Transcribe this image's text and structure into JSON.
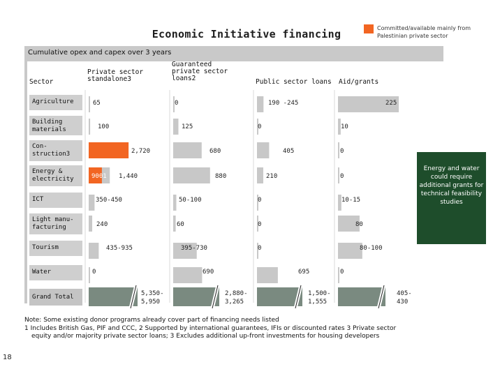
{
  "title": "Economic Initiative financing",
  "legend": {
    "text": "Committed/available mainly from Palestinian private sector",
    "color": "#f26522"
  },
  "subtitle": "Cumulative opex and capex over 3 years",
  "headers": {
    "sector": "Sector",
    "private": "Private sector standalone3",
    "guaranteed": "Guaranteed private sector loans2",
    "public": "Public sector loans",
    "aid": "Aid/grants"
  },
  "side_note": "Energy and water could require additional grants for technical feasibility studies",
  "note_line1": "Note: Some existing donor programs already cover part of financing needs listed",
  "note_line2": "1 Includes British Gas, PIF and CCC, 2 Supported by international guarantees, IFIs or discounted rates 3 Private sector",
  "note_line3": "equity and/or majority private sector loans; 3 Excludes additional up-front investments for housing developers",
  "page_number": "18",
  "colors": {
    "bar": "#c8c8c8",
    "highlight": "#f26522",
    "total": "#7a8a80",
    "side_box": "#1e4d2b"
  },
  "chart_data": {
    "type": "table",
    "columns": [
      "Private sector standalone3",
      "Guaranteed private sector loans2",
      "Public sector loans",
      "Aid/grants"
    ],
    "rows": [
      {
        "sector": "Agriculture",
        "values": [
          65,
          0,
          217.5,
          225
        ],
        "labels": [
          "65",
          "0",
          "190 -245",
          "225"
        ],
        "highlight": [
          false,
          false,
          false,
          false
        ]
      },
      {
        "sector": "Building materials",
        "values": [
          100,
          125,
          0,
          10
        ],
        "labels": [
          "100",
          "125",
          "0",
          "10"
        ],
        "highlight": [
          false,
          false,
          false,
          false
        ]
      },
      {
        "sector": "Con-struction3",
        "values": [
          2720,
          680,
          405,
          0
        ],
        "labels": [
          "2,720",
          "680",
          "405",
          "0"
        ],
        "highlight": [
          true,
          false,
          false,
          false
        ]
      },
      {
        "sector": "Energy & electricity",
        "values": [
          1440,
          880,
          210,
          0
        ],
        "labels": [
          "1,440",
          "880",
          "210",
          "0"
        ],
        "highlight": [
          false,
          false,
          false,
          false
        ],
        "inner": {
          "value": 900,
          "label": "9001"
        }
      },
      {
        "sector": "ICT",
        "values": [
          400,
          75,
          0,
          12.5
        ],
        "labels": [
          "350-450",
          "50-100",
          "0",
          "10-15"
        ],
        "highlight": [
          false,
          false,
          false,
          false
        ]
      },
      {
        "sector": "Light manu-facturing",
        "values": [
          240,
          60,
          0,
          80
        ],
        "labels": [
          "240",
          "60",
          "0",
          "80"
        ],
        "highlight": [
          false,
          false,
          false,
          false
        ]
      },
      {
        "sector": "Tourism",
        "values": [
          685,
          562.5,
          0,
          90
        ],
        "labels": [
          "435-935",
          "395-730",
          "0",
          "80-100"
        ],
        "highlight": [
          false,
          false,
          false,
          false
        ]
      },
      {
        "sector": "Water",
        "values": [
          0,
          690,
          695,
          0
        ],
        "labels": [
          "0",
          "690",
          "695",
          "0"
        ],
        "highlight": [
          false,
          false,
          false,
          false
        ]
      }
    ],
    "grand_total": {
      "sector": "Grand Total",
      "labels": [
        "5,350-5,950",
        "2,880-3,265",
        "1,500-1,555",
        "405-430"
      ]
    }
  }
}
